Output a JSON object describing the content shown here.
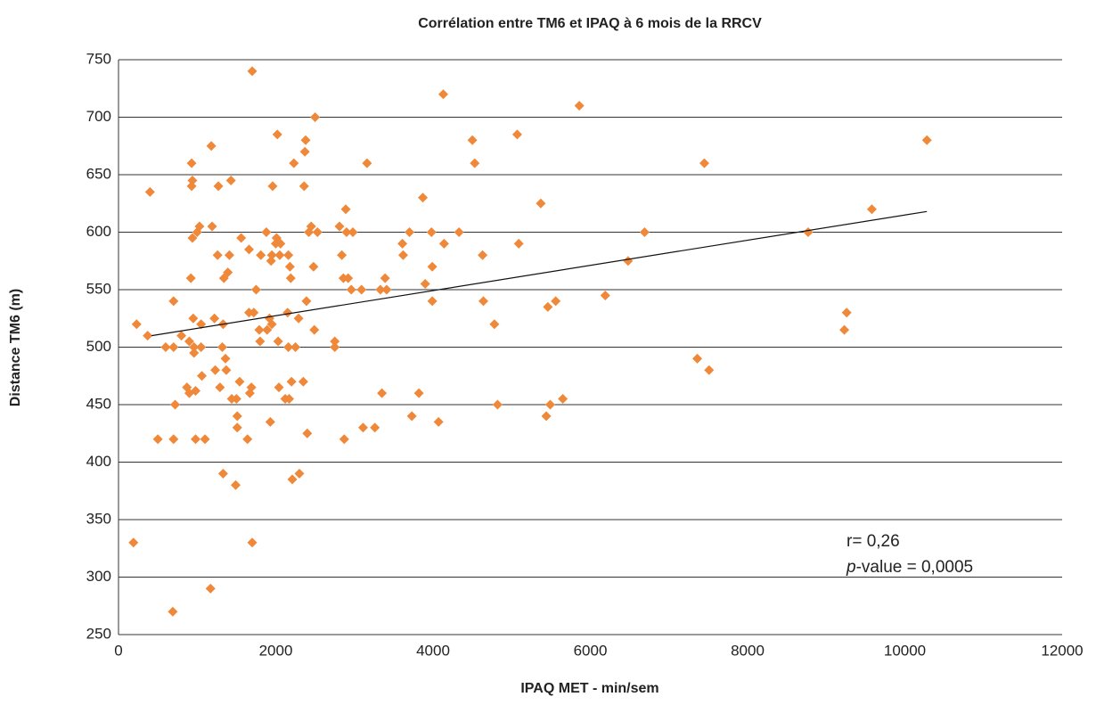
{
  "chart_data": {
    "type": "scatter",
    "title": "Corrélation entre TM6 et IPAQ à 6 mois de la RRCV",
    "x_label": "IPAQ MET - min/sem",
    "y_label": "Distance TM6 (m)",
    "color": "#f0883a",
    "grid": true,
    "xlim": [
      0,
      12000
    ],
    "xticks": [
      0,
      2000,
      4000,
      6000,
      8000,
      10000,
      12000
    ],
    "ylim": [
      250,
      750
    ],
    "yticks": [
      250,
      300,
      350,
      400,
      450,
      500,
      550,
      600,
      650,
      700,
      750
    ],
    "x": [
      190,
      230,
      370,
      400,
      500,
      600,
      700,
      700,
      720,
      690,
      700,
      800,
      870,
      900,
      900,
      920,
      930,
      930,
      940,
      940,
      950,
      960,
      960,
      980,
      980,
      1000,
      1030,
      1050,
      1060,
      1050,
      1100,
      1170,
      1180,
      1190,
      1220,
      1230,
      1260,
      1270,
      1290,
      1320,
      1330,
      1340,
      1330,
      1360,
      1370,
      1390,
      1410,
      1430,
      1440,
      1490,
      1500,
      1510,
      1510,
      1540,
      1560,
      1640,
      1660,
      1660,
      1670,
      1690,
      1700,
      1700,
      1720,
      1750,
      1790,
      1800,
      1810,
      1880,
      1890,
      1920,
      1930,
      1940,
      1950,
      1950,
      1960,
      2000,
      2010,
      2020,
      2030,
      2040,
      2050,
      2060,
      2120,
      2150,
      2160,
      2160,
      2170,
      2180,
      2190,
      2200,
      2210,
      2230,
      2250,
      2290,
      2300,
      2350,
      2360,
      2370,
      2380,
      2390,
      2400,
      2420,
      2450,
      2480,
      2490,
      2500,
      2530,
      2750,
      2750,
      2810,
      2840,
      2860,
      2870,
      2890,
      2900,
      2920,
      2960,
      2980,
      3090,
      3110,
      3160,
      3260,
      3330,
      3350,
      3390,
      3410,
      3610,
      3620,
      3700,
      3730,
      3820,
      3870,
      3900,
      3980,
      3990,
      3990,
      4070,
      4130,
      4140,
      4330,
      4500,
      4530,
      4630,
      4640,
      4780,
      4820,
      5070,
      5090,
      5370,
      5440,
      5460,
      5490,
      5560,
      5650,
      5860,
      6190,
      6480,
      6690,
      7360,
      7450,
      7510,
      8770,
      9230,
      9260,
      9580,
      10280
    ],
    "values": [
      330,
      520,
      510,
      635,
      420,
      500,
      500,
      420,
      450,
      270,
      540,
      510,
      465,
      505,
      460,
      560,
      640,
      660,
      645,
      595,
      525,
      500,
      495,
      420,
      462,
      600,
      605,
      520,
      475,
      500,
      420,
      290,
      675,
      605,
      525,
      480,
      580,
      640,
      465,
      500,
      520,
      560,
      390,
      490,
      480,
      565,
      580,
      645,
      455,
      380,
      455,
      430,
      440,
      470,
      595,
      420,
      530,
      585,
      460,
      465,
      740,
      330,
      530,
      550,
      515,
      505,
      580,
      600,
      515,
      525,
      435,
      575,
      580,
      520,
      640,
      590,
      595,
      685,
      505,
      465,
      580,
      590,
      455,
      530,
      500,
      580,
      455,
      570,
      560,
      470,
      385,
      660,
      500,
      525,
      390,
      470,
      640,
      670,
      680,
      540,
      425,
      600,
      605,
      570,
      515,
      700,
      600,
      505,
      500,
      605,
      580,
      560,
      420,
      620,
      600,
      560,
      550,
      600,
      550,
      430,
      660,
      430,
      550,
      460,
      560,
      550,
      590,
      580,
      600,
      440,
      460,
      630,
      555,
      600,
      570,
      540,
      435,
      720,
      590,
      600,
      680,
      660,
      580,
      540,
      520,
      450,
      685,
      590,
      625,
      440,
      535,
      450,
      540,
      455,
      710,
      545,
      575,
      600,
      490,
      660,
      480,
      600,
      515,
      530,
      620,
      680
    ],
    "trendline": {
      "x": [
        420,
        10280
      ],
      "values": [
        510,
        618
      ]
    },
    "annotations": [
      {
        "text": "r= 0,26"
      },
      {
        "italic": "p",
        "text": "-value = 0,0005"
      }
    ]
  }
}
